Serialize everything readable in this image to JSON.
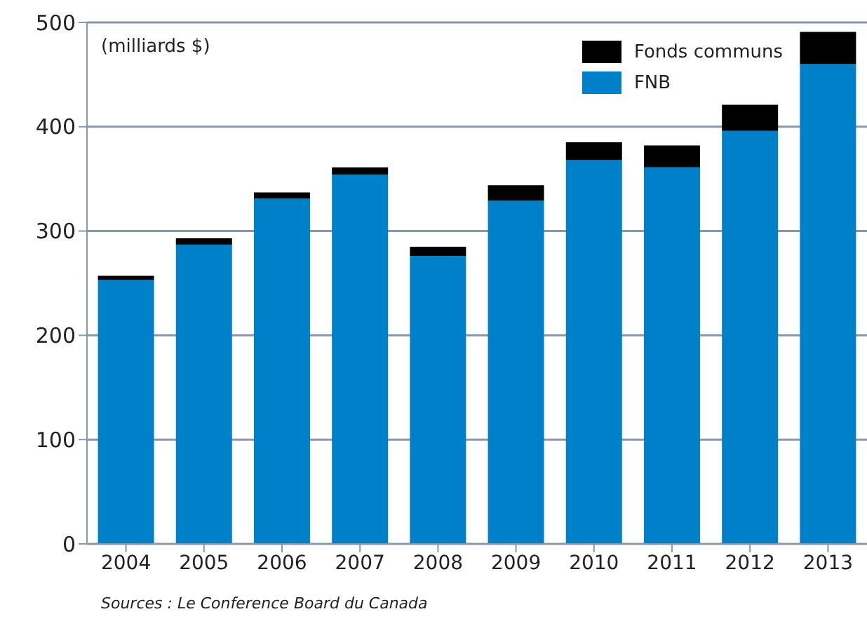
{
  "chart_data": {
    "type": "bar",
    "stacked": true,
    "ylabel": "(milliards $)",
    "categories": [
      "2004",
      "2005",
      "2006",
      "2007",
      "2008",
      "2009",
      "2010",
      "2011",
      "2012",
      "2013"
    ],
    "series": [
      {
        "name": "FNB",
        "color": "#0080c8",
        "values": [
          253,
          287,
          331,
          354,
          276,
          329,
          368,
          361,
          396,
          460
        ]
      },
      {
        "name": "Fonds communs",
        "color": "#000000",
        "values": [
          4,
          6,
          6,
          7,
          9,
          15,
          17,
          21,
          25,
          31
        ]
      }
    ],
    "ylim": [
      0,
      500
    ],
    "yticks": [
      0,
      100,
      200,
      300,
      400,
      500
    ],
    "grid": "y",
    "legend": "top right",
    "annotations": [
      "Sources : Le Conference Board du Canada"
    ]
  }
}
